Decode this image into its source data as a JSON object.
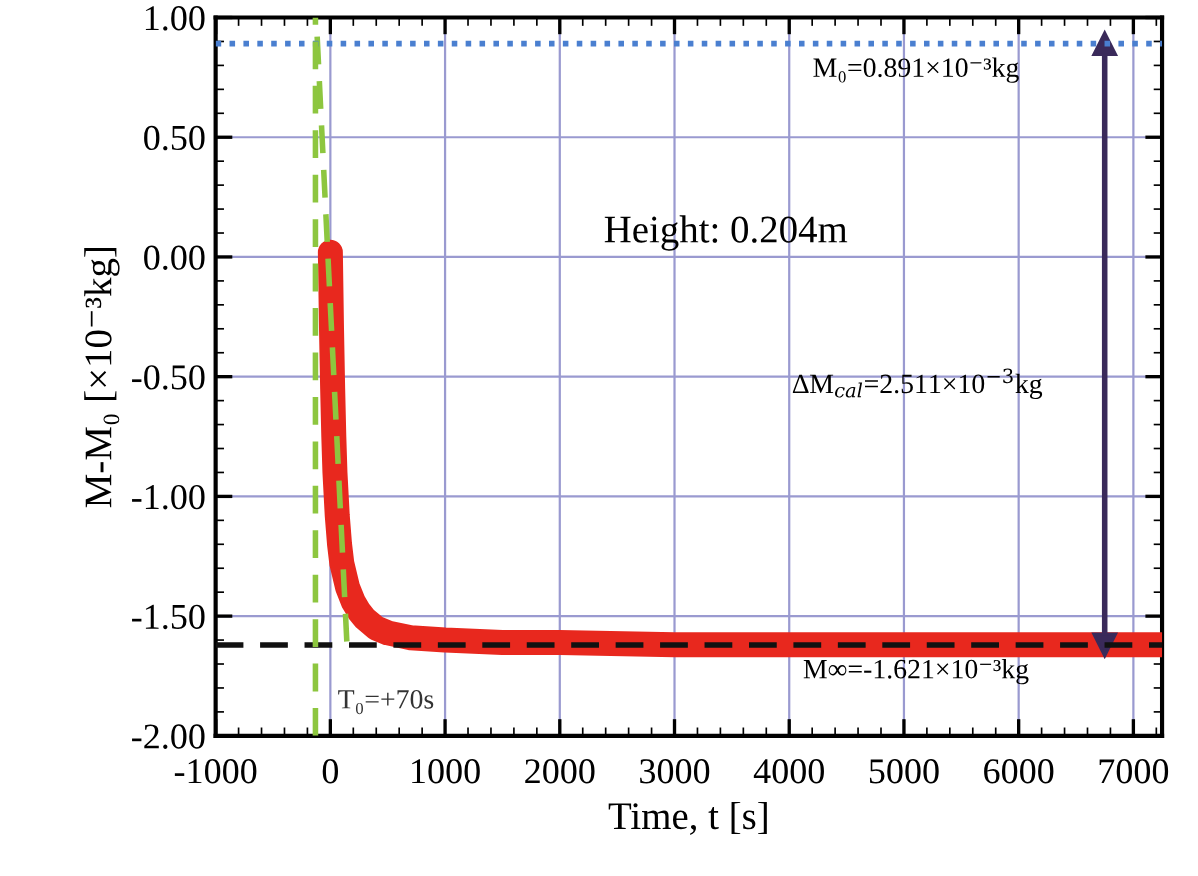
{
  "chart_data": {
    "type": "line",
    "xlabel": "Time, t [s]",
    "ylabel": "M-M₀ [×10⁻³kg]",
    "xlim": [
      -1000,
      7250
    ],
    "xticks": [
      -1000,
      0,
      1000,
      2000,
      3000,
      4000,
      5000,
      6000,
      7000
    ],
    "ylim": [
      -2.0,
      1.0
    ],
    "yticks": [
      {
        "value": -2.0,
        "label": "-2.00"
      },
      {
        "value": -1.5,
        "label": "-1.50"
      },
      {
        "value": -1.0,
        "label": "-1.00"
      },
      {
        "value": -0.5,
        "label": "-0.50"
      },
      {
        "value": 0.0,
        "label": "0.00"
      },
      {
        "value": 0.5,
        "label": "0.50"
      },
      {
        "value": 1.0,
        "label": "1.00"
      }
    ],
    "grid": true,
    "legend": false,
    "series": [
      {
        "color": "#e8281e",
        "line_style": "solid",
        "x": [
          0,
          10,
          20,
          30,
          40,
          60,
          80,
          100,
          150,
          200,
          250,
          300,
          400,
          500,
          700,
          1000,
          1500,
          2000,
          3000,
          4000,
          5000,
          6000,
          7000,
          7250
        ],
        "values": [
          0.02,
          -0.3,
          -0.55,
          -0.75,
          -0.9,
          -1.08,
          -1.2,
          -1.28,
          -1.38,
          -1.44,
          -1.48,
          -1.51,
          -1.55,
          -1.57,
          -1.59,
          -1.6,
          -1.61,
          -1.61,
          -1.62,
          -1.62,
          -1.62,
          -1.62,
          -1.62,
          -1.62
        ]
      },
      {
        "color": "#8dc63f",
        "line_style": "dashed",
        "x": [
          -115,
          145
        ],
        "values": [
          0.92,
          -1.62
        ]
      },
      {
        "color": "#3a2a5a",
        "line_style": "solid",
        "marker": "triangle",
        "x": [
          6750,
          6750
        ],
        "values": [
          -1.621,
          0.891
        ]
      }
    ],
    "ref_lines": [
      {
        "axis": "y",
        "value": 0.891,
        "label": "M₀=0.891×10⁻³kg",
        "color": "#4a7fd0",
        "line_style": "dotted"
      },
      {
        "axis": "y",
        "value": -1.621,
        "label": "M∞=-1.621×10⁻³kg",
        "color": "#111111",
        "line_style": "dashed"
      },
      {
        "axis": "x",
        "value": -130,
        "label": "T₀=+70s",
        "color": "#8dc63f",
        "line_style": "dashed"
      }
    ],
    "annotations": [
      "Height: 0.204m",
      "∆M$_{cal}$=2.511×10$^{−3}$kg"
    ]
  }
}
